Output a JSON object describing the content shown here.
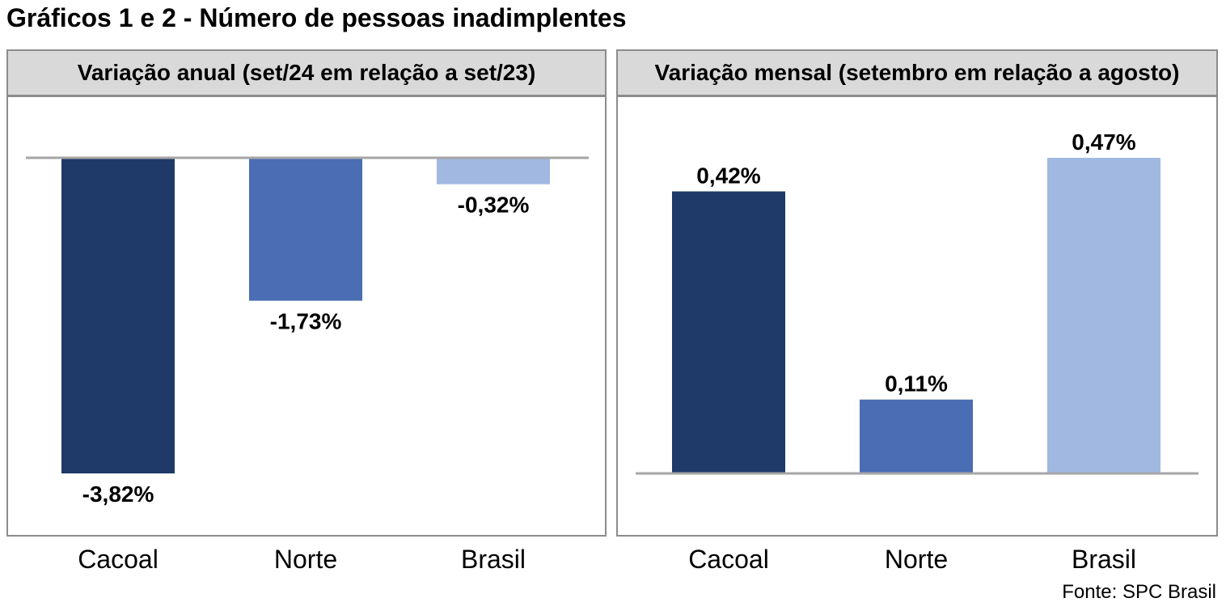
{
  "title": "Gráficos 1 e 2 - Número de pessoas inadimplentes",
  "source": "Fonte: SPC Brasil",
  "colors": {
    "cacoal": "#1f3a68",
    "norte": "#4a6db4",
    "brasil": "#a1b8e1",
    "axis": "#a6a6a6",
    "header_bg": "#d9d9d9",
    "border": "#8c8c8c"
  },
  "chart_data": [
    {
      "type": "bar",
      "title": "Variação anual (set/24 em relação a set/23)",
      "categories": [
        "Cacoal",
        "Norte",
        "Brasil"
      ],
      "values": [
        -3.82,
        -1.73,
        -0.32
      ],
      "data_labels": [
        "-3,82%",
        "-1,73%",
        "-0,32%"
      ],
      "ylim": [
        -3.82,
        0
      ],
      "grid": false,
      "legend": "none"
    },
    {
      "type": "bar",
      "title": "Variação mensal (setembro em relação a agosto)",
      "categories": [
        "Cacoal",
        "Norte",
        "Brasil"
      ],
      "values": [
        0.42,
        0.11,
        0.47
      ],
      "data_labels": [
        "0,42%",
        "0,11%",
        "0,47%"
      ],
      "ylim": [
        0,
        0.47
      ],
      "grid": false,
      "legend": "none"
    }
  ]
}
